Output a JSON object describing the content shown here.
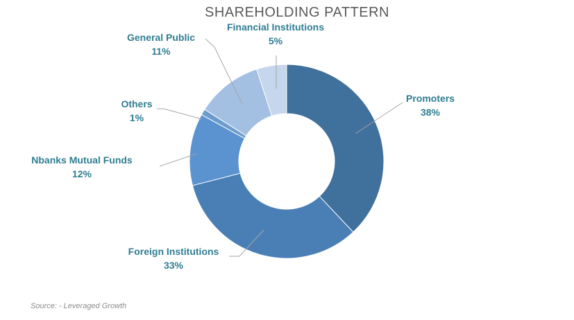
{
  "chart_data": {
    "type": "pie",
    "donut": true,
    "title": "SHAREHOLDING PATTERN",
    "categories": [
      "Promoters",
      "Foreign Institutions",
      "Nbanks Mutual Funds",
      "Others",
      "General Public",
      "Financial Institutions"
    ],
    "values": [
      38,
      33,
      12,
      1,
      11,
      5
    ],
    "value_labels": [
      "38%",
      "33%",
      "12%",
      "1%",
      "11%",
      "5%"
    ],
    "colors": [
      "#40709c",
      "#4a7fb6",
      "#5a93cf",
      "#6b9ccd",
      "#a3bfe2",
      "#c6d6ec"
    ],
    "legend": "none",
    "label_color": "#2e7d92"
  },
  "source_note": "Source: - Leveraged Growth"
}
